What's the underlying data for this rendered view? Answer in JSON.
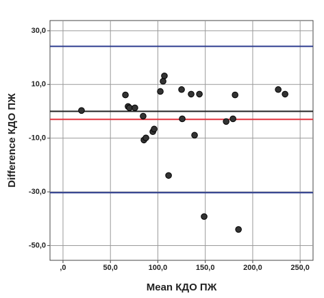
{
  "chart_data": {
    "type": "scatter",
    "x_label": "Mean  КДО ПЖ",
    "y_label": "Difference КДО ПЖ",
    "x": [
      19.5,
      65.8,
      68.6,
      70.1,
      75.8,
      84.5,
      85.3,
      87.4,
      94.7,
      96.1,
      102.6,
      105.5,
      106.9,
      111.3,
      125.0,
      125.7,
      135.1,
      138.7,
      143.8,
      148.8,
      172.0,
      179.2,
      181.4,
      185.0,
      226.9,
      234.1
    ],
    "values": [
      0.3,
      6.1,
      1.8,
      1.3,
      1.3,
      -1.8,
      -10.7,
      -9.9,
      -7.6,
      -6.6,
      7.4,
      11.2,
      13.2,
      -23.9,
      8.1,
      -2.8,
      6.4,
      -8.9,
      6.4,
      -39.2,
      -3.8,
      -2.8,
      6.1,
      -44.0,
      8.1,
      6.4
    ],
    "color": "#333333",
    "reference_lines": [
      {
        "value": 24.2,
        "color": "#2e3d8f"
      },
      {
        "value": 0,
        "color": "#222222"
      },
      {
        "value": -3.0,
        "color": "#e0323c"
      },
      {
        "value": -30.3,
        "color": "#2e3d8f"
      }
    ],
    "xlim": [
      -13.7,
      263.6
    ],
    "ylim": [
      -55.5,
      33.8
    ],
    "xticks": [
      {
        "value": 0,
        "label": ",0"
      },
      {
        "value": 50,
        "label": "50,0"
      },
      {
        "value": 100,
        "label": "100,0"
      },
      {
        "value": 150,
        "label": "150,0"
      },
      {
        "value": 200,
        "label": "200,0"
      },
      {
        "value": 250,
        "label": "250,0"
      }
    ],
    "yticks": [
      {
        "value": 30,
        "label": "30,0"
      },
      {
        "value": 10,
        "label": "10,0"
      },
      {
        "value": -10,
        "label": "-10,0"
      },
      {
        "value": -30,
        "label": "-30,0"
      },
      {
        "value": -50,
        "label": "-50,0"
      }
    ],
    "grid": true
  }
}
